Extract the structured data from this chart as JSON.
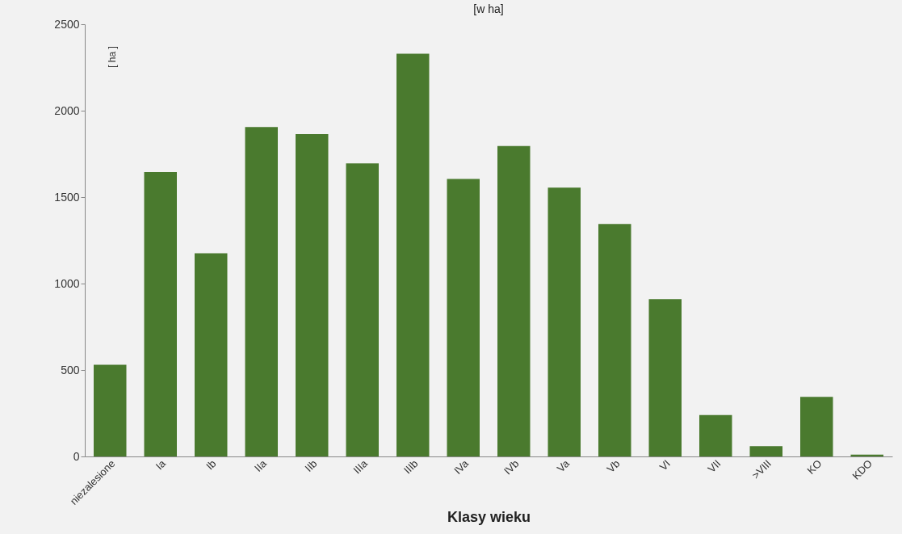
{
  "chart_data": {
    "type": "bar",
    "title": "[w ha]",
    "xlabel": "Klasy wieku",
    "ylabel": "[ ha ]",
    "categories": [
      "niezalesione",
      "Ia",
      "Ib",
      "IIa",
      "IIb",
      "IIIa",
      "IIIb",
      "IVa",
      "IVb",
      "Va",
      "Vb",
      "VI",
      "VII",
      ">VIII",
      "KO",
      "KDO"
    ],
    "values": [
      530,
      1645,
      1175,
      1905,
      1865,
      1695,
      2330,
      1605,
      1795,
      1555,
      1345,
      910,
      240,
      60,
      345,
      10
    ],
    "color": "#4a7a2e",
    "ylim": [
      0,
      2500
    ],
    "yticks": [
      0,
      500,
      1000,
      1500,
      2000,
      2500
    ],
    "grid": false
  }
}
